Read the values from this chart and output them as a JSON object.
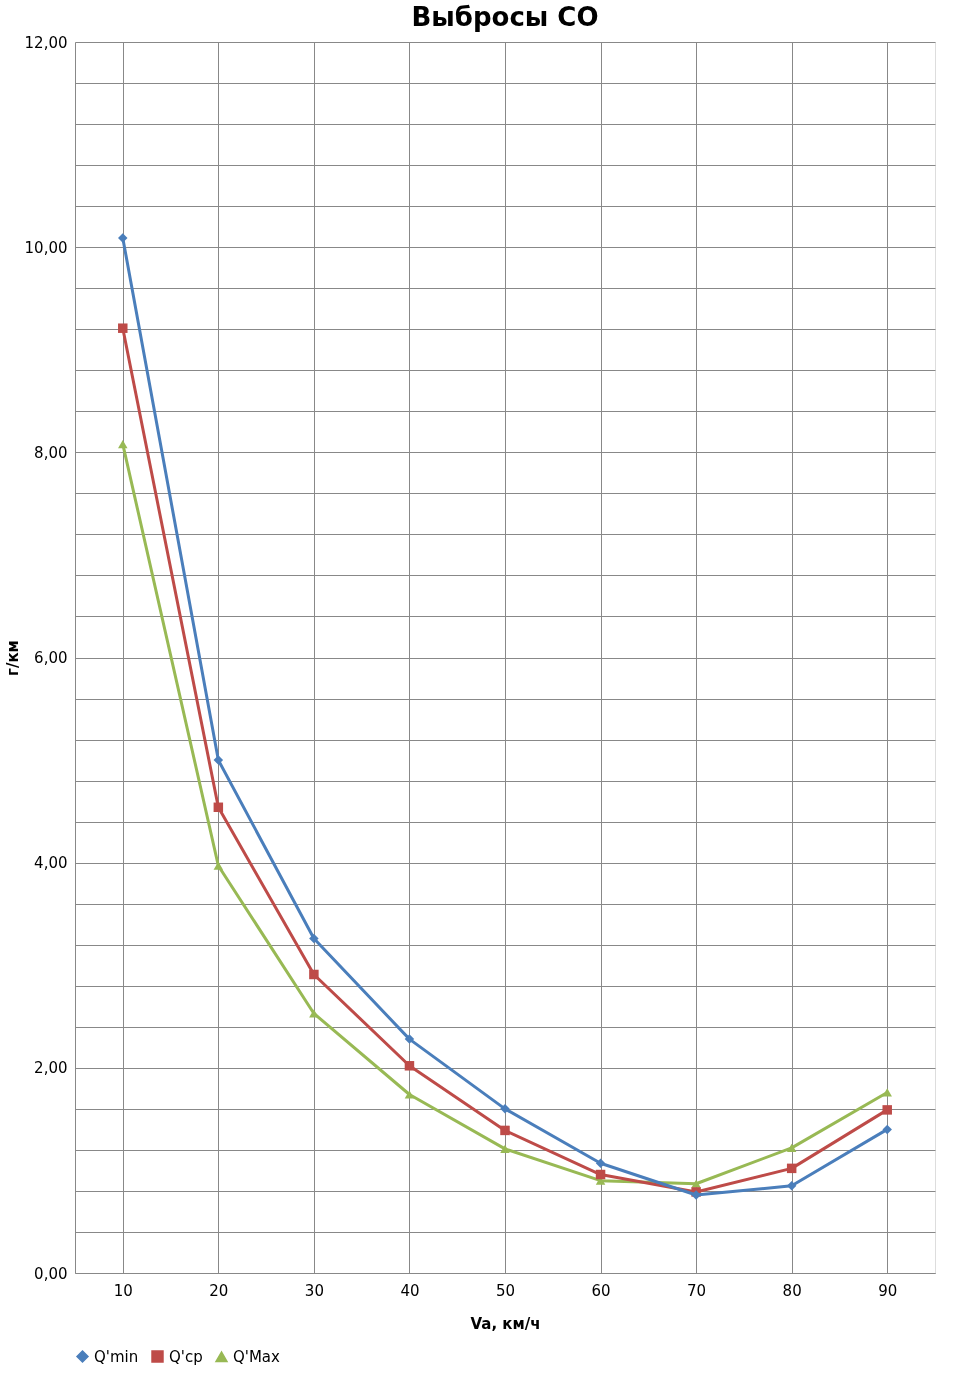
{
  "chart_data": {
    "type": "line",
    "title": "Выбросы СО",
    "xlabel": "Va, км/ч",
    "ylabel": "г/км",
    "categories": [
      "10",
      "20",
      "30",
      "40",
      "50",
      "60",
      "70",
      "80",
      "90"
    ],
    "series": [
      {
        "name": "Q'min",
        "color": "#4a7ebb",
        "marker": "diamond",
        "values": [
          10.09,
          5.0,
          3.26,
          2.28,
          1.6,
          1.07,
          0.76,
          0.85,
          1.4
        ]
      },
      {
        "name": "Q'ср",
        "color": "#be4b48",
        "marker": "square",
        "values": [
          9.21,
          4.54,
          2.91,
          2.02,
          1.39,
          0.96,
          0.79,
          1.02,
          1.59
        ]
      },
      {
        "name": "Q'Max",
        "color": "#98b954",
        "marker": "triangle",
        "values": [
          8.08,
          3.97,
          2.53,
          1.74,
          1.21,
          0.9,
          0.87,
          1.22,
          1.76
        ]
      }
    ],
    "ylim": [
      0,
      12
    ],
    "yticks": [
      {
        "value": 0,
        "label": "0,00"
      },
      {
        "value": 0.4,
        "label": null
      },
      {
        "value": 0.8,
        "label": null
      },
      {
        "value": 1.2,
        "label": null
      },
      {
        "value": 1.6,
        "label": null
      },
      {
        "value": 2,
        "label": "2,00"
      },
      {
        "value": 2.4,
        "label": null
      },
      {
        "value": 2.8,
        "label": null
      },
      {
        "value": 3.2,
        "label": null
      },
      {
        "value": 3.6,
        "label": null
      },
      {
        "value": 4,
        "label": "4,00"
      },
      {
        "value": 4.4,
        "label": null
      },
      {
        "value": 4.8,
        "label": null
      },
      {
        "value": 5.2,
        "label": null
      },
      {
        "value": 5.6,
        "label": null
      },
      {
        "value": 6,
        "label": "6,00"
      },
      {
        "value": 6.4,
        "label": null
      },
      {
        "value": 6.8,
        "label": null
      },
      {
        "value": 7.2,
        "label": null
      },
      {
        "value": 7.6,
        "label": null
      },
      {
        "value": 8,
        "label": "8,00"
      },
      {
        "value": 8.4,
        "label": null
      },
      {
        "value": 8.8,
        "label": null
      },
      {
        "value": 9.2,
        "label": null
      },
      {
        "value": 9.6,
        "label": null
      },
      {
        "value": 10,
        "label": "10,00"
      },
      {
        "value": 10.4,
        "label": null
      },
      {
        "value": 10.8,
        "label": null
      },
      {
        "value": 11.2,
        "label": null
      },
      {
        "value": 11.6,
        "label": null
      },
      {
        "value": 12,
        "label": "12,00"
      }
    ],
    "grid": true,
    "legend": "bottom",
    "line_style": "solid"
  }
}
